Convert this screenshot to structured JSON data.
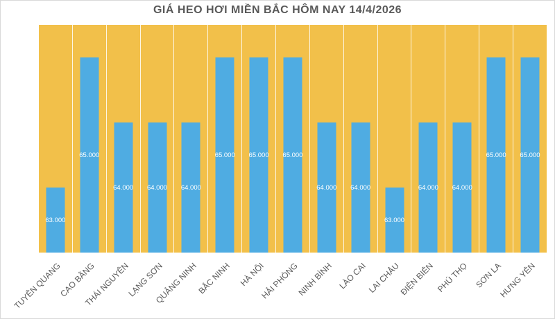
{
  "title": "GIÁ HEO HƠI MIỀN BẮC HÔM NAY 14/4/2026",
  "chart_data": {
    "type": "bar",
    "title": "GIÁ HEO HƠI MIỀN BẮC HÔM NAY 14/4/2026",
    "categories": [
      "TUYÊN QUANG",
      "CAO BẰNG",
      "THÁI NGUYÊN",
      "LẠNG SƠN",
      "QUẢNG NINH",
      "BẮC NINH",
      "HÀ NỘI",
      "HẢI PHÒNG",
      "NINH BÌNH",
      "LÀO CAI",
      "LAI CHÂU",
      "ĐIỆN BIÊN",
      "PHÚ THỌ",
      "SƠN LA",
      "HƯNG YÊN"
    ],
    "values": [
      63000,
      65000,
      64000,
      64000,
      64000,
      65000,
      65000,
      65000,
      64000,
      64000,
      63000,
      64000,
      64000,
      65000,
      65000
    ],
    "value_labels": [
      "63.000",
      "65.000",
      "64.000",
      "64.000",
      "64.000",
      "65.000",
      "65.000",
      "65.000",
      "64.000",
      "64.000",
      "63.000",
      "64.000",
      "64.000",
      "65.000",
      "65.000"
    ],
    "xlabel": "",
    "ylabel": "",
    "ylim": [
      62000,
      65500
    ],
    "grid": "vertical category separators, white",
    "legend": "none",
    "value_label_position": "center-of-bar",
    "x_label_rotation_deg": -45,
    "colors": {
      "bar": "#4FACE2",
      "plot_background": "#F2C04A",
      "separator": "#FFFFFF",
      "value_label": "#FFFFFF",
      "title": "#595959",
      "axis_label": "#595959",
      "canvas_background": "#FFFFFF",
      "canvas_border": "#D9D9D9"
    }
  }
}
